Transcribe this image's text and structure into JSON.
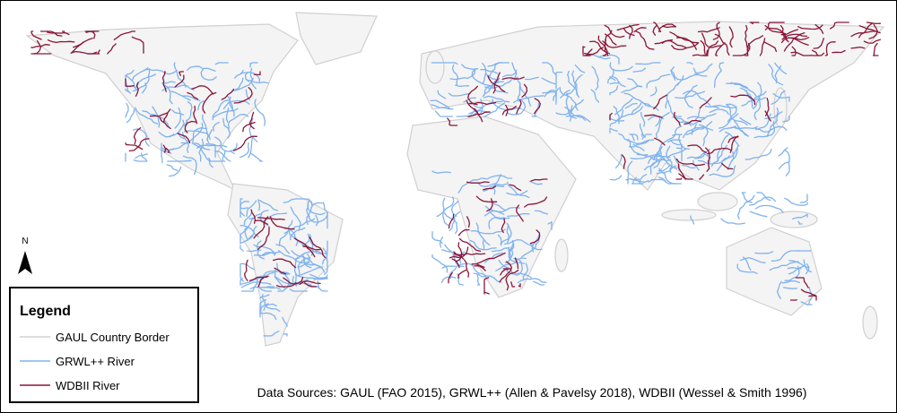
{
  "north_arrow": {
    "label": "N"
  },
  "legend": {
    "title": "Legend",
    "items": [
      {
        "label": "GAUL Country Border",
        "color": "#d0d0d0"
      },
      {
        "label": "GRWL++ River",
        "color": "#7fb2ee"
      },
      {
        "label": "WDBII River",
        "color": "#8a1538"
      }
    ]
  },
  "footer": {
    "sources": "Data Sources: GAUL (FAO 2015), GRWL++ (Allen & Pavelsy 2018), WDBII (Wessel & Smith 1996)"
  }
}
